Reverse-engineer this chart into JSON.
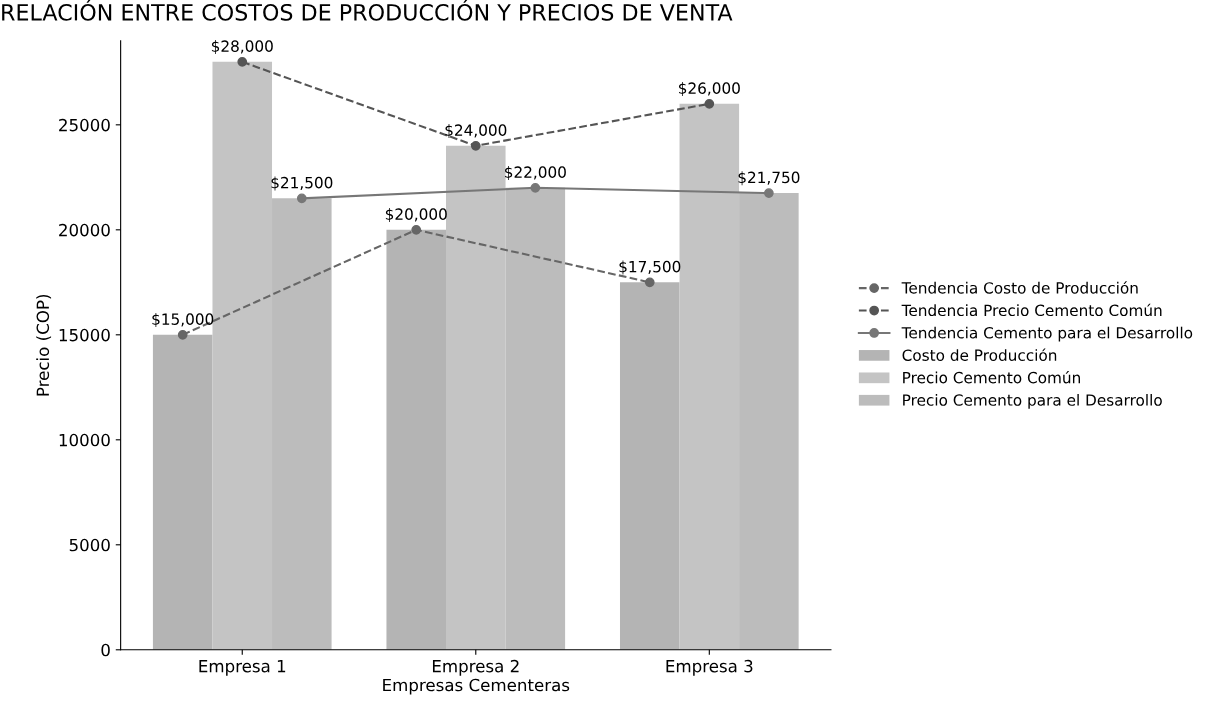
{
  "chart_data": {
    "type": "bar",
    "title": "RELACIÓN ENTRE COSTOS DE PRODUCCIÓN Y PRECIOS DE VENTA",
    "xlabel": "Empresas Cementeras",
    "ylabel": "Precio (COP)",
    "categories": [
      "Empresa 1",
      "Empresa 2",
      "Empresa 3"
    ],
    "series": [
      {
        "name": "Tendencia Costo de Producción",
        "type": "line",
        "color": "#666666",
        "line_style": "dashed",
        "marker": "circle",
        "values": [
          15000,
          20000,
          17500
        ],
        "value_labels": [
          "$15,000",
          "$20,000",
          "$17,500"
        ]
      },
      {
        "name": "Tendencia Precio Cemento Común",
        "type": "line",
        "color": "#555555",
        "line_style": "dashed",
        "marker": "circle",
        "values": [
          28000,
          24000,
          26000
        ],
        "value_labels": [
          "$28,000",
          "$24,000",
          "$26,000"
        ]
      },
      {
        "name": "Tendencia Cemento para el Desarrollo",
        "type": "line",
        "color": "#777777",
        "line_style": "solid",
        "marker": "circle",
        "values": [
          21500,
          22000,
          21750
        ],
        "value_labels": [
          "$21,500",
          "$22,000",
          "$21,750"
        ]
      },
      {
        "name": "Costo de Producción",
        "color": "#b4b4b4",
        "values": [
          15000,
          20000,
          17500
        ]
      },
      {
        "name": "Precio Cemento Común",
        "color": "#c4c4c4",
        "values": [
          28000,
          24000,
          26000
        ]
      },
      {
        "name": "Precio Cemento para el Desarrollo",
        "color": "#bcbcbc",
        "values": [
          21500,
          22000,
          21750
        ]
      }
    ],
    "ylim": [
      0,
      29000
    ],
    "yticks": [
      0,
      5000,
      10000,
      15000,
      20000,
      25000
    ],
    "legend": "right",
    "grid": false
  }
}
